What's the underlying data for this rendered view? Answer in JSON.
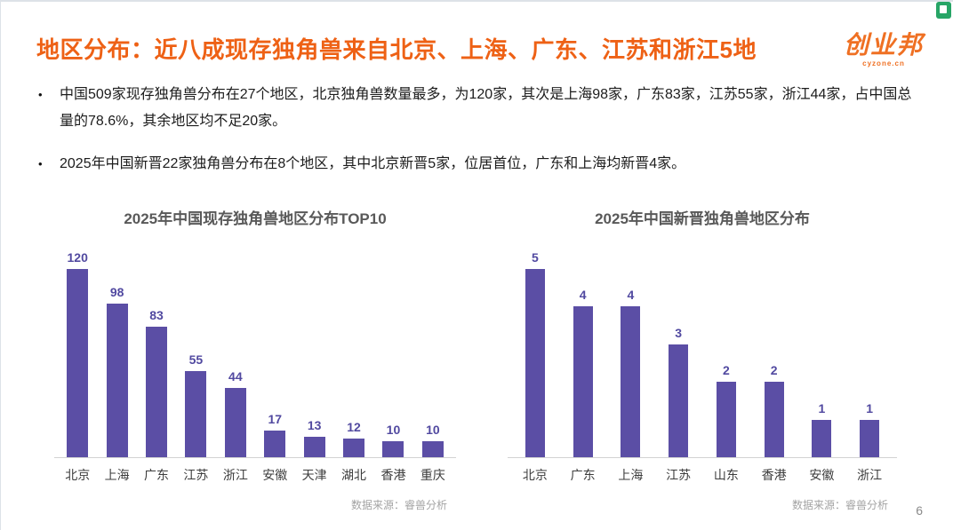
{
  "page": {
    "number": "6"
  },
  "header": {
    "title": "地区分布：近八成现存独角兽来自北京、上海、广东、江苏和浙江5地",
    "title_color": "#ee6115",
    "logo_text": "创业邦",
    "logo_sub": "cyzone.cn",
    "corner_badge_color": "#27a566"
  },
  "bullets": {
    "item1": "中国509家现存独角兽分布在27个地区，北京独角兽数量最多，为120家，其次是上海98家，广东83家，江苏55家，浙江44家，占中国总量的78.6%，其余地区均不足20家。",
    "item2": "2025年中国新晋22家独角兽分布在8个地区，其中北京新晋5家，位居首位，广东和上海均新晋4家。"
  },
  "chart_data": [
    {
      "type": "bar",
      "title": "2025年中国现存独角兽地区分布TOP10",
      "categories": [
        "北京",
        "上海",
        "广东",
        "江苏",
        "浙江",
        "安徽",
        "天津",
        "湖北",
        "香港",
        "重庆"
      ],
      "values": [
        120,
        98,
        83,
        55,
        44,
        17,
        13,
        12,
        10,
        10
      ],
      "ylim": [
        0,
        120
      ],
      "bar_color": "#5b4ea5",
      "value_label_color": "#5149a0",
      "grid": false,
      "legend": "none",
      "source": "数据来源：睿兽分析"
    },
    {
      "type": "bar",
      "title": "2025年中国新晋独角兽地区分布",
      "categories": [
        "北京",
        "广东",
        "上海",
        "江苏",
        "山东",
        "香港",
        "安徽",
        "浙江"
      ],
      "values": [
        5,
        4,
        4,
        3,
        2,
        2,
        1,
        1
      ],
      "ylim": [
        0,
        5
      ],
      "bar_color": "#5b4ea5",
      "value_label_color": "#5149a0",
      "grid": false,
      "legend": "none",
      "source": "数据来源：睿兽分析"
    }
  ]
}
